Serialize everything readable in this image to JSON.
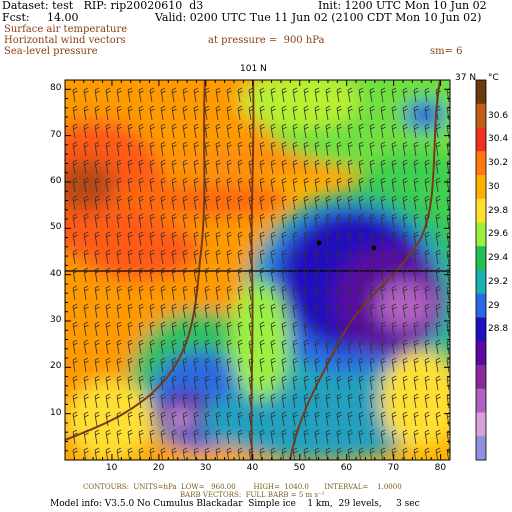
{
  "header": {
    "line1_left": "Dataset: test   RIP: rip20020610  d3",
    "line1_right": "Init: 1200 UTC Mon 10 Jun 02",
    "line2_left": "Fcst:     14.00",
    "line2_right": "Valid: 0200 UTC Tue 11 Jun 02 (2100 CDT Mon 10 Jun 02)",
    "field1": "Surface air temperature",
    "field2": "Horizontal wind vectors",
    "field3": "Sea-level pressure",
    "pressure": "at pressure =  900 hPa",
    "sm": "sm= 6"
  },
  "map": {
    "top_label": "101 N",
    "right_top_label": "37 N",
    "unit_label": "°C",
    "x_ticks": [
      "10",
      "20",
      "30",
      "40",
      "50",
      "60",
      "70",
      "80"
    ],
    "y_ticks": [
      "10",
      "20",
      "30",
      "40",
      "50",
      "60",
      "70",
      "80"
    ]
  },
  "colorbar": {
    "labels": [
      "30.6",
      "30.4",
      "30.2",
      "30",
      "29.8",
      "29.6",
      "29.4",
      "29.2",
      "29",
      "28.8"
    ],
    "colors": [
      "#6b3a10",
      "#c06018",
      "#f03020",
      "#ff7a10",
      "#ffb000",
      "#ffe030",
      "#9cf040",
      "#22c050",
      "#18b0b0",
      "#2a6ae0",
      "#2010c0",
      "#5a0aa0",
      "#8a2a9a",
      "#b060c0",
      "#d8a0d8",
      "#9090e0"
    ]
  },
  "footer": {
    "line1": "CONTOURS:  UNITS=hPa  LOW=   960.00        HIGH=  1040.0       INTERVAL=    1.0000",
    "line2": "BARB VECTORS:  FULL BARB = 5 m s⁻¹",
    "line3": "Model info: V3.5.0 No Cumulus Blackadar  Simple ice    1 km,  29 levels,     3 sec"
  }
}
